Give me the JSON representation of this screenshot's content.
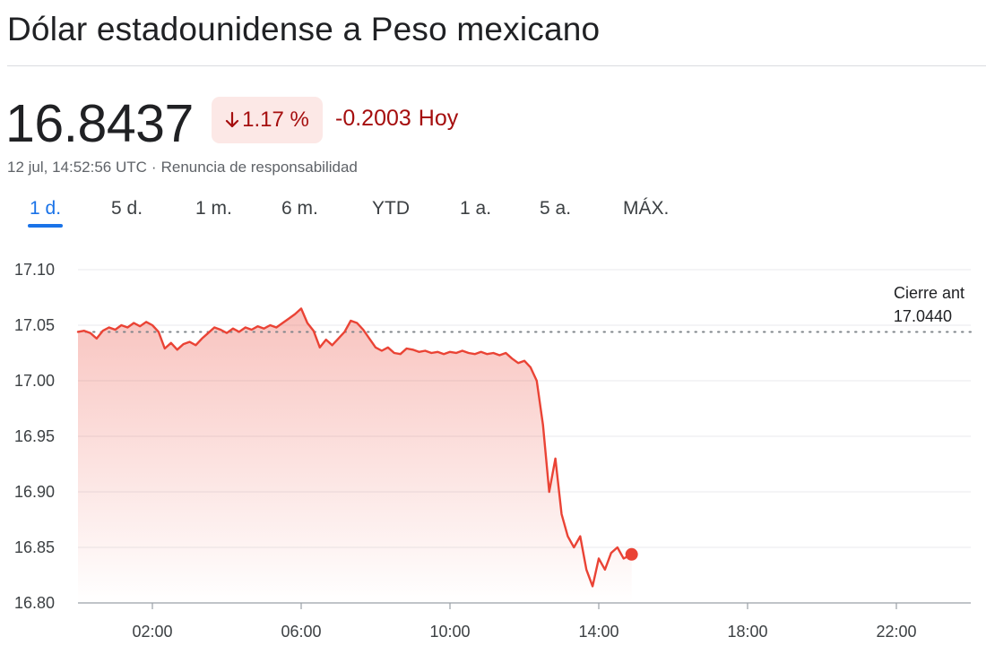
{
  "header": {
    "title": "Dólar estadounidense a Peso mexicano"
  },
  "quote": {
    "price": "16.8437",
    "percent_change": "1.17 %",
    "abs_change": "-0.2003",
    "period": "Hoy",
    "timestamp": "12 jul, 14:52:56 UTC",
    "separator": "·",
    "disclaimer": "Renuncia de responsabilidad",
    "direction": "down",
    "down_color": "#a50e0e",
    "badge_bg": "#fce8e6"
  },
  "range_tabs": {
    "active": 0,
    "items": [
      "1 d.",
      "5 d.",
      "1 m.",
      "6 m.",
      "YTD",
      "1 a.",
      "5 a.",
      "MÁX."
    ]
  },
  "chart_data": {
    "type": "area",
    "title": "",
    "xlabel": "",
    "ylabel": "",
    "ylim": [
      16.8,
      17.1
    ],
    "xlim": [
      "00:00",
      "24:00"
    ],
    "y_ticks": [
      "17.10",
      "17.05",
      "17.00",
      "16.95",
      "16.90",
      "16.85",
      "16.80"
    ],
    "x_ticks": [
      "02:00",
      "06:00",
      "10:00",
      "14:00",
      "18:00",
      "22:00"
    ],
    "grid": true,
    "line_color": "#ea4335",
    "fill_color": "#ea4335",
    "previous_close": {
      "label": "Cierre ant",
      "value_text": "17.0440",
      "value": 17.044
    },
    "last_point": {
      "x": "14:53",
      "y": 16.8437
    },
    "series": [
      {
        "points": [
          [
            "00:00",
            17.044
          ],
          [
            "00:10",
            17.045
          ],
          [
            "00:20",
            17.043
          ],
          [
            "00:30",
            17.038
          ],
          [
            "00:40",
            17.045
          ],
          [
            "00:50",
            17.048
          ],
          [
            "01:00",
            17.046
          ],
          [
            "01:10",
            17.05
          ],
          [
            "01:20",
            17.048
          ],
          [
            "01:30",
            17.052
          ],
          [
            "01:40",
            17.049
          ],
          [
            "01:50",
            17.053
          ],
          [
            "02:00",
            17.05
          ],
          [
            "02:10",
            17.044
          ],
          [
            "02:20",
            17.029
          ],
          [
            "02:30",
            17.034
          ],
          [
            "02:40",
            17.028
          ],
          [
            "02:50",
            17.033
          ],
          [
            "03:00",
            17.035
          ],
          [
            "03:10",
            17.032
          ],
          [
            "03:20",
            17.038
          ],
          [
            "03:30",
            17.043
          ],
          [
            "03:40",
            17.048
          ],
          [
            "03:50",
            17.046
          ],
          [
            "04:00",
            17.043
          ],
          [
            "04:10",
            17.047
          ],
          [
            "04:20",
            17.044
          ],
          [
            "04:30",
            17.048
          ],
          [
            "04:40",
            17.046
          ],
          [
            "04:50",
            17.049
          ],
          [
            "05:00",
            17.047
          ],
          [
            "05:10",
            17.05
          ],
          [
            "05:20",
            17.048
          ],
          [
            "05:30",
            17.052
          ],
          [
            "05:40",
            17.056
          ],
          [
            "05:50",
            17.06
          ],
          [
            "06:00",
            17.065
          ],
          [
            "06:10",
            17.052
          ],
          [
            "06:20",
            17.045
          ],
          [
            "06:30",
            17.03
          ],
          [
            "06:40",
            17.037
          ],
          [
            "06:50",
            17.032
          ],
          [
            "07:00",
            17.038
          ],
          [
            "07:10",
            17.044
          ],
          [
            "07:20",
            17.054
          ],
          [
            "07:30",
            17.052
          ],
          [
            "07:40",
            17.046
          ],
          [
            "07:50",
            17.038
          ],
          [
            "08:00",
            17.03
          ],
          [
            "08:10",
            17.027
          ],
          [
            "08:20",
            17.03
          ],
          [
            "08:30",
            17.025
          ],
          [
            "08:40",
            17.024
          ],
          [
            "08:50",
            17.029
          ],
          [
            "09:00",
            17.028
          ],
          [
            "09:10",
            17.026
          ],
          [
            "09:20",
            17.027
          ],
          [
            "09:30",
            17.025
          ],
          [
            "09:40",
            17.026
          ],
          [
            "09:50",
            17.024
          ],
          [
            "10:00",
            17.026
          ],
          [
            "10:10",
            17.025
          ],
          [
            "10:20",
            17.027
          ],
          [
            "10:30",
            17.025
          ],
          [
            "10:40",
            17.024
          ],
          [
            "10:50",
            17.026
          ],
          [
            "11:00",
            17.024
          ],
          [
            "11:10",
            17.025
          ],
          [
            "11:20",
            17.023
          ],
          [
            "11:30",
            17.025
          ],
          [
            "11:40",
            17.02
          ],
          [
            "11:50",
            17.016
          ],
          [
            "12:00",
            17.018
          ],
          [
            "12:10",
            17.012
          ],
          [
            "12:20",
            17.0
          ],
          [
            "12:30",
            16.96
          ],
          [
            "12:40",
            16.9
          ],
          [
            "12:50",
            16.93
          ],
          [
            "13:00",
            16.88
          ],
          [
            "13:10",
            16.86
          ],
          [
            "13:20",
            16.85
          ],
          [
            "13:30",
            16.86
          ],
          [
            "13:40",
            16.83
          ],
          [
            "13:50",
            16.815
          ],
          [
            "14:00",
            16.84
          ],
          [
            "14:10",
            16.83
          ],
          [
            "14:20",
            16.845
          ],
          [
            "14:30",
            16.85
          ],
          [
            "14:40",
            16.84
          ],
          [
            "14:53",
            16.8437
          ]
        ]
      }
    ]
  }
}
